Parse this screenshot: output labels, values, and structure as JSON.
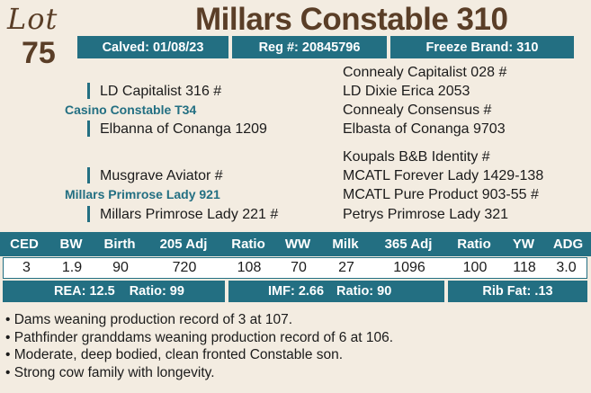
{
  "lot": {
    "label": "Lot",
    "number": "75"
  },
  "animal_name": "Millars Constable 310",
  "info_bar": {
    "calved": "Calved: 01/08/23",
    "reg": "Reg #: 20845796",
    "freeze_brand": "Freeze Brand: 310"
  },
  "pedigree": {
    "sire": "Casino Constable T34",
    "sire_sire": "LD Capitalist 316 #",
    "sire_dam": "Elbanna of Conanga 1209",
    "sss": "Connealy Capitalist 028 #",
    "ssd": "LD Dixie Erica 2053",
    "sds": "Connealy Consensus #",
    "sdd": "Elbasta of Conanga 9703",
    "dam": "Millars Primrose Lady 921",
    "dam_sire": "Musgrave Aviator #",
    "dam_dam": "Millars Primrose Lady 221 #",
    "dss": "Koupals B&B Identity #",
    "dsd": "MCATL Forever Lady 1429-138",
    "dds": "MCATL Pure Product 903-55 #",
    "ddd": "Petrys Primrose Lady 321"
  },
  "epd": {
    "headers": [
      "CED",
      "BW",
      "Birth",
      "205 Adj",
      "Ratio",
      "WW",
      "Milk",
      "365 Adj",
      "Ratio",
      "YW",
      "ADG"
    ],
    "values": [
      "3",
      "1.9",
      "90",
      "720",
      "108",
      "70",
      "27",
      "1096",
      "100",
      "118",
      "3.0"
    ]
  },
  "carcass": {
    "rea": "REA: 12.5",
    "rea_ratio": "Ratio: 99",
    "imf": "IMF: 2.66",
    "imf_ratio": "Ratio: 90",
    "rib_fat": "Rib Fat: .13"
  },
  "notes": [
    "• Dams weaning production record of 3 at 107.",
    "• Pathfinder granddams weaning production record of 6 at 106.",
    "• Moderate, deep bodied, clean fronted Constable son.",
    "• Strong cow family with longevity."
  ],
  "colors": {
    "accent": "#236f82",
    "brown": "#5a3e27",
    "background": "#f3ece1"
  }
}
